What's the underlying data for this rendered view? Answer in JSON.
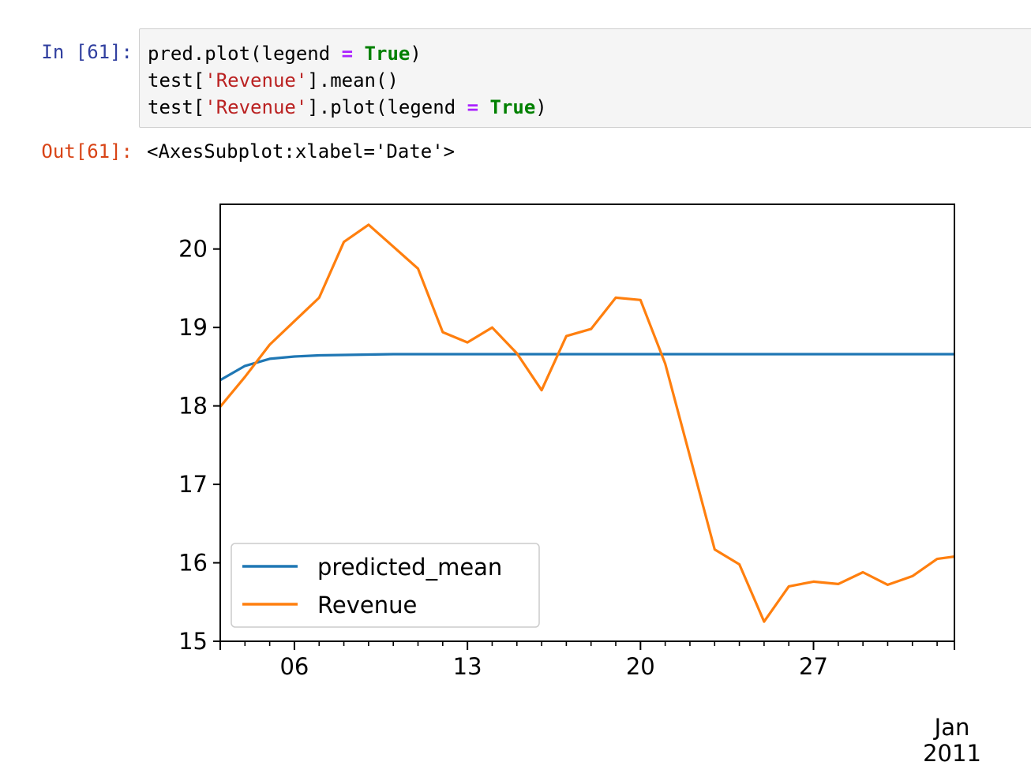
{
  "input_prompt": "In [61]:",
  "output_prompt": "Out[61]:",
  "code_lines": [
    [
      {
        "t": "pred.plot(legend ",
        "c": "plain"
      },
      {
        "t": "=",
        "c": "op"
      },
      {
        "t": " ",
        "c": "plain"
      },
      {
        "t": "True",
        "c": "kw"
      },
      {
        "t": ")",
        "c": "plain"
      }
    ],
    [
      {
        "t": "test[",
        "c": "plain"
      },
      {
        "t": "'Revenue'",
        "c": "str"
      },
      {
        "t": "].mean()",
        "c": "plain"
      }
    ],
    [
      {
        "t": "test[",
        "c": "plain"
      },
      {
        "t": "'Revenue'",
        "c": "str"
      },
      {
        "t": "].plot(legend ",
        "c": "plain"
      },
      {
        "t": "=",
        "c": "op"
      },
      {
        "t": " ",
        "c": "plain"
      },
      {
        "t": "True",
        "c": "kw"
      },
      {
        "t": ")",
        "c": "plain"
      }
    ]
  ],
  "output_text": "<AxesSubplot:xlabel='Date'>",
  "chart_data": {
    "type": "line",
    "x_unit": "day of January 2011",
    "xlim": [
      3,
      32.7
    ],
    "ylim": [
      15,
      20.57
    ],
    "x_ticks": [
      {
        "value": 6,
        "label": "06"
      },
      {
        "value": 13,
        "label": "13"
      },
      {
        "value": 20,
        "label": "20"
      },
      {
        "value": 27,
        "label": "27"
      }
    ],
    "x_minor_ticks": [
      4,
      5,
      7,
      8,
      9,
      10,
      11,
      12,
      14,
      15,
      16,
      17,
      18,
      19,
      21,
      22,
      23,
      24,
      25,
      26,
      28,
      29,
      30,
      31,
      32
    ],
    "x_period_label": [
      "Jan",
      "2011"
    ],
    "y_ticks": [
      15,
      16,
      17,
      18,
      19,
      20
    ],
    "grid": false,
    "legend_position": "lower-left",
    "series": [
      {
        "name": "predicted_mean",
        "color": "#1f77b4",
        "x": [
          3,
          4,
          5,
          6,
          7,
          8,
          9,
          10,
          12,
          14,
          16,
          18,
          20,
          22,
          24,
          26,
          28,
          30,
          32.7
        ],
        "y": [
          18.33,
          18.51,
          18.6,
          18.63,
          18.645,
          18.65,
          18.655,
          18.66,
          18.66,
          18.66,
          18.66,
          18.66,
          18.66,
          18.66,
          18.66,
          18.66,
          18.66,
          18.66,
          18.66
        ]
      },
      {
        "name": "Revenue",
        "color": "#ff7f0e",
        "x": [
          3,
          4,
          5,
          6,
          7,
          8,
          9,
          10,
          11,
          12,
          13,
          14,
          15,
          16,
          17,
          18,
          19,
          20,
          21,
          22,
          23,
          24,
          25,
          26,
          27,
          28,
          29,
          30,
          31,
          32,
          32.7
        ],
        "y": [
          17.99,
          18.37,
          18.78,
          19.08,
          19.38,
          20.09,
          20.31,
          20.03,
          19.75,
          18.94,
          18.81,
          19.0,
          18.67,
          18.2,
          18.89,
          18.98,
          19.38,
          19.35,
          18.54,
          17.36,
          16.17,
          15.98,
          15.25,
          15.7,
          15.76,
          15.73,
          15.88,
          15.72,
          15.83,
          16.05,
          16.08
        ]
      }
    ]
  }
}
